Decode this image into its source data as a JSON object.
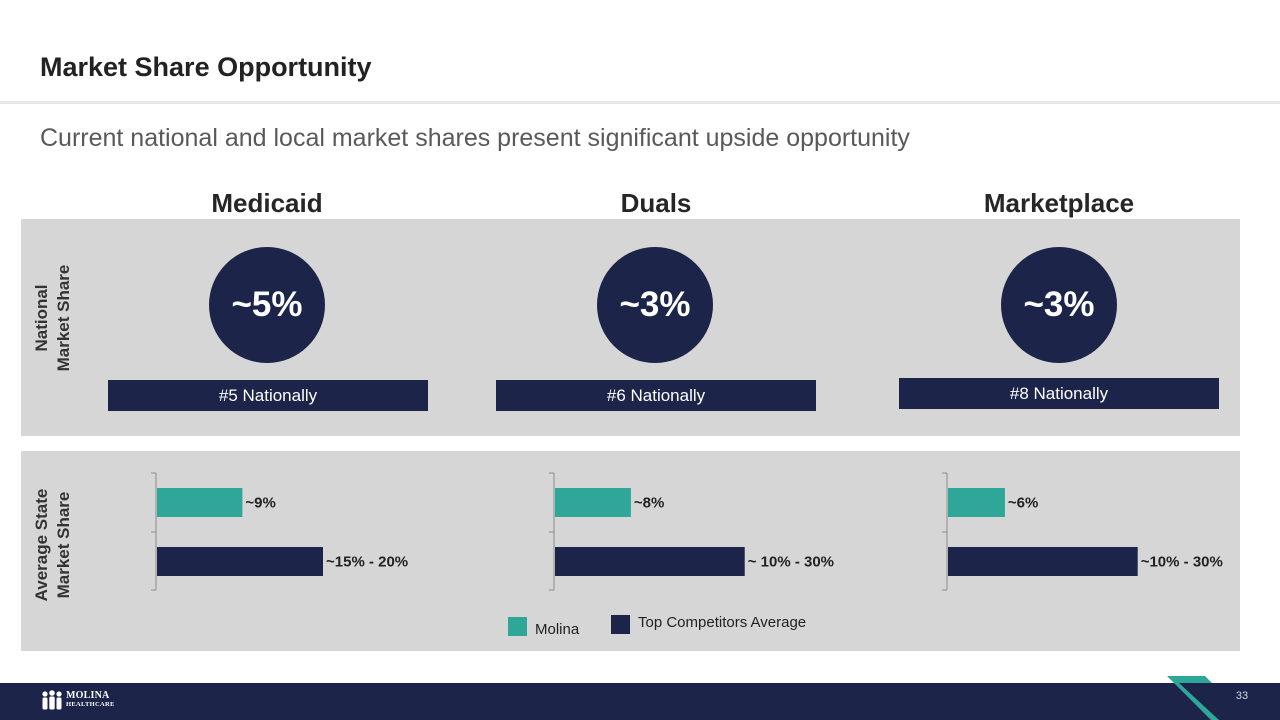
{
  "slide": {
    "title": "Market Share Opportunity",
    "subtitle": "Current national and local market shares present significant upside opportunity",
    "page_number": "33"
  },
  "rows": {
    "national_label_1": "National",
    "national_label_2": "Market Share",
    "state_label_1": "Average State",
    "state_label_2": "Market Share"
  },
  "columns": [
    {
      "name": "Medicaid",
      "national_share": "~5%",
      "rank": "#5 Nationally"
    },
    {
      "name": "Duals",
      "national_share": "~3%",
      "rank": "#6 Nationally"
    },
    {
      "name": "Marketplace",
      "national_share": "~3%",
      "rank": "#8 Nationally"
    }
  ],
  "chart_data": [
    {
      "type": "bar",
      "orientation": "horizontal",
      "categories": [
        "Molina",
        "Top Competitors Average"
      ],
      "values": [
        9,
        17.5
      ],
      "value_labels": [
        "~9%",
        "~15% - 20%"
      ]
    },
    {
      "type": "bar",
      "orientation": "horizontal",
      "categories": [
        "Molina",
        "Top Competitors Average"
      ],
      "values": [
        8,
        20
      ],
      "value_labels": [
        "~8%",
        "~ 10% - 30%"
      ]
    },
    {
      "type": "bar",
      "orientation": "horizontal",
      "categories": [
        "Molina",
        "Top Competitors Average"
      ],
      "values": [
        6,
        20
      ],
      "value_labels": [
        "~6%",
        "~10% - 30%"
      ]
    }
  ],
  "legend": {
    "molina": "Molina",
    "competitors": "Top Competitors Average"
  },
  "colors": {
    "teal": "#2ea698",
    "navy": "#1c2549",
    "panel": "#d6d6d6"
  },
  "logo": {
    "line1": "MOLINA",
    "line2": "HEALTHCARE"
  }
}
